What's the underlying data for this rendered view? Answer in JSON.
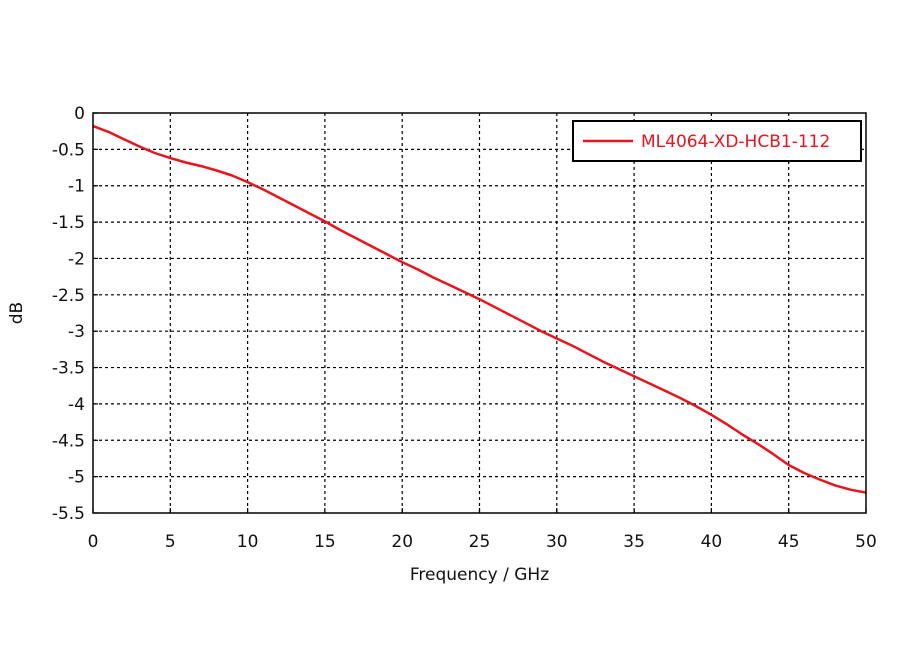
{
  "chart_data": {
    "type": "line",
    "title": "",
    "xlabel": "Frequency / GHz",
    "ylabel": "dB",
    "xlim": [
      0,
      50
    ],
    "ylim": [
      -5.5,
      0
    ],
    "x_ticks": [
      0,
      5,
      10,
      15,
      20,
      25,
      30,
      35,
      40,
      45,
      50
    ],
    "y_ticks": [
      0,
      -0.5,
      -1,
      -1.5,
      -2,
      -2.5,
      -3,
      -3.5,
      -4,
      -4.5,
      -5,
      -5.5
    ],
    "x_tick_labels": [
      "0",
      "5",
      "10",
      "15",
      "20",
      "25",
      "30",
      "35",
      "40",
      "45",
      "50"
    ],
    "y_tick_labels": [
      "0",
      "-0.5",
      "-1",
      "-1.5",
      "-2",
      "-2.5",
      "-3",
      "-3.5",
      "-4",
      "-4.5",
      "-5",
      "-5.5"
    ],
    "grid": true,
    "legend_position": "top-right",
    "series": [
      {
        "name": "ML4064-XD-HCB1-112",
        "color": "#e8141e",
        "x": [
          0,
          1,
          2,
          3,
          4,
          5,
          6,
          7,
          8,
          9,
          10,
          11,
          12,
          13,
          14,
          15,
          16,
          17,
          18,
          19,
          20,
          21,
          22,
          23,
          24,
          25,
          26,
          27,
          28,
          29,
          30,
          31,
          32,
          33,
          34,
          35,
          36,
          37,
          38,
          39,
          40,
          41,
          42,
          43,
          44,
          45,
          46,
          47,
          48,
          49,
          50
        ],
        "y": [
          -0.18,
          -0.26,
          -0.36,
          -0.46,
          -0.55,
          -0.62,
          -0.68,
          -0.73,
          -0.79,
          -0.86,
          -0.95,
          -1.05,
          -1.16,
          -1.27,
          -1.38,
          -1.49,
          -1.61,
          -1.72,
          -1.83,
          -1.94,
          -2.05,
          -2.15,
          -2.26,
          -2.36,
          -2.46,
          -2.56,
          -2.67,
          -2.78,
          -2.89,
          -3.0,
          -3.1,
          -3.2,
          -3.31,
          -3.42,
          -3.52,
          -3.62,
          -3.72,
          -3.82,
          -3.92,
          -4.03,
          -4.15,
          -4.28,
          -4.42,
          -4.55,
          -4.69,
          -4.84,
          -4.95,
          -5.04,
          -5.12,
          -5.18,
          -5.22
        ]
      }
    ]
  }
}
